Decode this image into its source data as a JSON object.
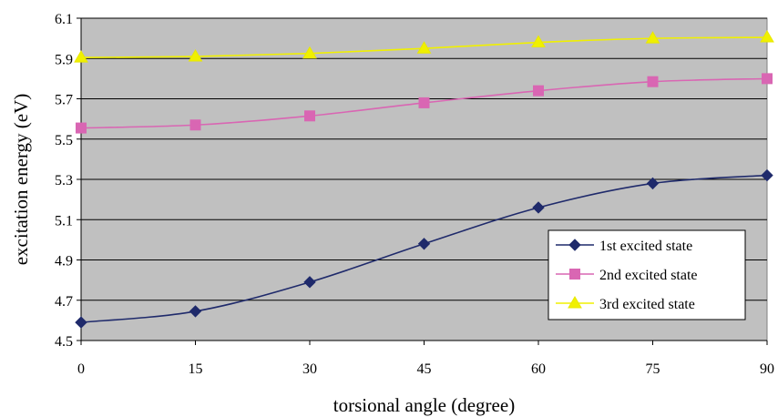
{
  "chart_data": {
    "type": "line",
    "title": "",
    "xlabel": "torsional angle (degree)",
    "ylabel": "excitation energy (eV)",
    "x": [
      0,
      15,
      30,
      45,
      60,
      75,
      90
    ],
    "xlim": [
      0,
      90
    ],
    "ylim": [
      4.5,
      6.1
    ],
    "yticks": [
      "4.5",
      "4.7",
      "4.9",
      "5.1",
      "5.3",
      "5.5",
      "5.7",
      "5.9",
      "6.1"
    ],
    "xticks": [
      "0",
      "15",
      "30",
      "45",
      "60",
      "75",
      "90"
    ],
    "grid": "horizontal",
    "legend_position": "bottom-right",
    "background": "#c0c0c0",
    "series": [
      {
        "name": "1st excited state",
        "values": [
          4.59,
          4.645,
          4.79,
          4.98,
          5.16,
          5.28,
          5.32
        ],
        "color": "#1f2a6b",
        "marker": "diamond"
      },
      {
        "name": "2nd excited state",
        "values": [
          5.555,
          5.57,
          5.615,
          5.68,
          5.74,
          5.785,
          5.8
        ],
        "color": "#d966b3",
        "marker": "square"
      },
      {
        "name": "3rd excited state",
        "values": [
          5.905,
          5.91,
          5.925,
          5.95,
          5.98,
          6.0,
          6.005
        ],
        "color": "#f0f000",
        "marker": "triangle"
      }
    ]
  }
}
